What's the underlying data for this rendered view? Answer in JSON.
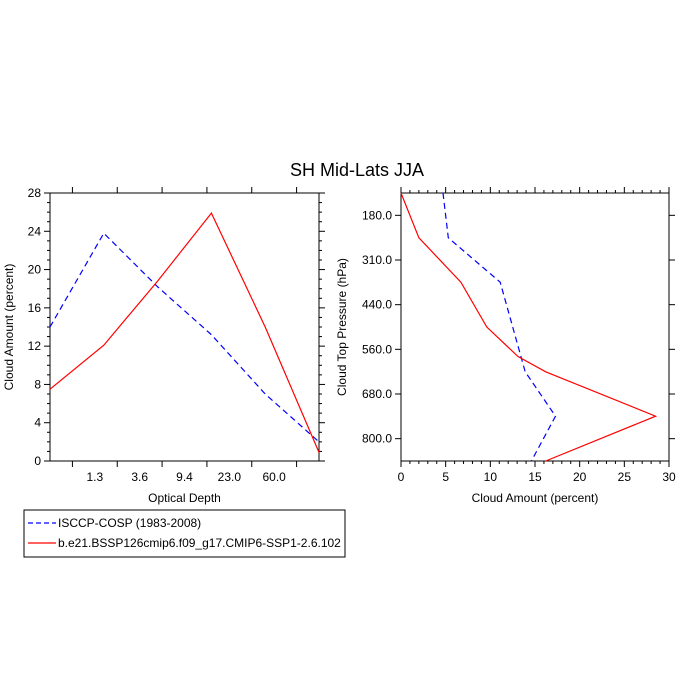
{
  "title": "SH Mid-Lats JJA",
  "chart_data": [
    {
      "type": "line",
      "xlabel": "Optical Depth",
      "ylabel": "Cloud Amount (percent)",
      "xtick_labels": [
        "1.3",
        "3.6",
        "9.4",
        "23.0",
        "60.0"
      ],
      "yticks": [
        0,
        4,
        8,
        12,
        16,
        20,
        24,
        28
      ],
      "ylim": [
        0,
        28
      ],
      "series": [
        {
          "name": "ISCCP-COSP (1983-2008)",
          "color": "#0000ff",
          "dash": "dashed",
          "points": [
            [
              0.0,
              14.0
            ],
            [
              0.2,
              23.8
            ],
            [
              0.4,
              18.2
            ],
            [
              0.6,
              13.2
            ],
            [
              0.8,
              7.0
            ],
            [
              1.0,
              2.0
            ]
          ]
        },
        {
          "name": "b.e21.BSSP126cmip6.f09_g17.CMIP6-SSP1-2.6.102",
          "color": "#ff0000",
          "dash": "solid",
          "points": [
            [
              0.0,
              7.5
            ],
            [
              0.2,
              12.1
            ],
            [
              0.4,
              18.8
            ],
            [
              0.6,
              25.9
            ],
            [
              0.8,
              14.0
            ],
            [
              1.0,
              0.9
            ]
          ]
        }
      ]
    },
    {
      "type": "line",
      "xlabel": "Cloud Amount (percent)",
      "ylabel": "Cloud Top Pressure (hPa)",
      "xticks": [
        0,
        5,
        10,
        15,
        20,
        25,
        30
      ],
      "xlim": [
        0,
        30
      ],
      "ytick_labels": [
        "180.0",
        "310.0",
        "440.0",
        "560.0",
        "680.0",
        "800.0"
      ],
      "ytick_positions": [
        0.0833,
        0.25,
        0.4167,
        0.5833,
        0.75,
        0.9167
      ],
      "series": [
        {
          "name": "ISCCP-COSP (1983-2008)",
          "color": "#0000ff",
          "dash": "dashed",
          "points": [
            [
              4.7,
              0.0
            ],
            [
              5.3,
              0.167
            ],
            [
              11.1,
              0.333
            ],
            [
              12.5,
              0.5
            ],
            [
              13.9,
              0.667
            ],
            [
              17.3,
              0.833
            ],
            [
              14.6,
              1.0
            ]
          ]
        },
        {
          "name": "b.e21.BSSP126cmip6.f09_g17.CMIP6-SSP1-2.6.102",
          "color": "#ff0000",
          "dash": "solid",
          "points": [
            [
              0.0,
              0.0
            ],
            [
              2.0,
              0.167
            ],
            [
              6.7,
              0.333
            ],
            [
              9.6,
              0.5
            ],
            [
              13.1,
              0.61
            ],
            [
              16.2,
              0.667
            ],
            [
              28.5,
              0.833
            ],
            [
              16.2,
              1.0
            ]
          ]
        }
      ]
    }
  ],
  "legend": {
    "entries": [
      "ISCCP-COSP (1983-2008)",
      "b.e21.BSSP126cmip6.f09_g17.CMIP6-SSP1-2.6.102"
    ]
  }
}
